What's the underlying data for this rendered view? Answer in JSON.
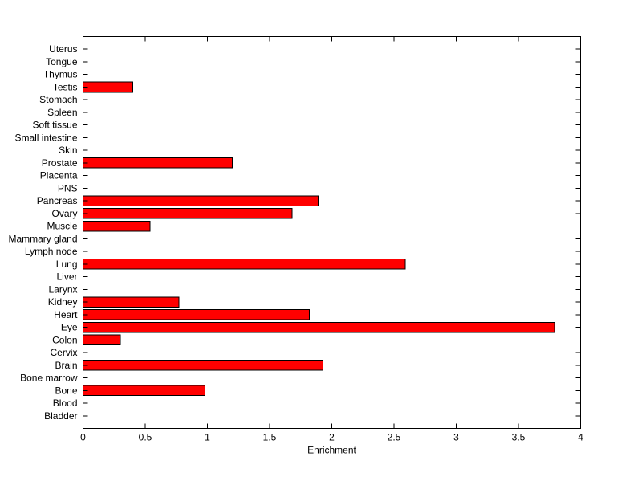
{
  "figure": {
    "background": "#ffffff"
  },
  "chart_data": {
    "type": "bar",
    "orientation": "horizontal",
    "title": "",
    "xlabel": "Enrichment",
    "ylabel": "",
    "xlim": [
      0,
      4
    ],
    "xticks": [
      0,
      0.5,
      1,
      1.5,
      2,
      2.5,
      3,
      3.5,
      4
    ],
    "xtick_labels": [
      "0",
      "0.5",
      "1",
      "1.5",
      "2",
      "2.5",
      "3",
      "3.5",
      "4"
    ],
    "grid": false,
    "legend": null,
    "bar_color": "#ff0000",
    "bar_edge_color": "#000000",
    "axis_color": "#000000",
    "categories": [
      "Uterus",
      "Tongue",
      "Thymus",
      "Testis",
      "Stomach",
      "Spleen",
      "Soft tissue",
      "Small intestine",
      "Skin",
      "Prostate",
      "Placenta",
      "PNS",
      "Pancreas",
      "Ovary",
      "Muscle",
      "Mammary gland",
      "Lymph node",
      "Lung",
      "Liver",
      "Larynx",
      "Kidney",
      "Heart",
      "Eye",
      "Colon",
      "Cervix",
      "Brain",
      "Bone marrow",
      "Bone",
      "Blood",
      "Bladder"
    ],
    "values": [
      0,
      0,
      0,
      0.4,
      0,
      0,
      0,
      0,
      0,
      1.2,
      0,
      0,
      1.89,
      1.68,
      0.54,
      0,
      0,
      2.59,
      0,
      0,
      0.77,
      1.82,
      3.79,
      0.3,
      0,
      1.93,
      0,
      0.98,
      0,
      0
    ]
  }
}
